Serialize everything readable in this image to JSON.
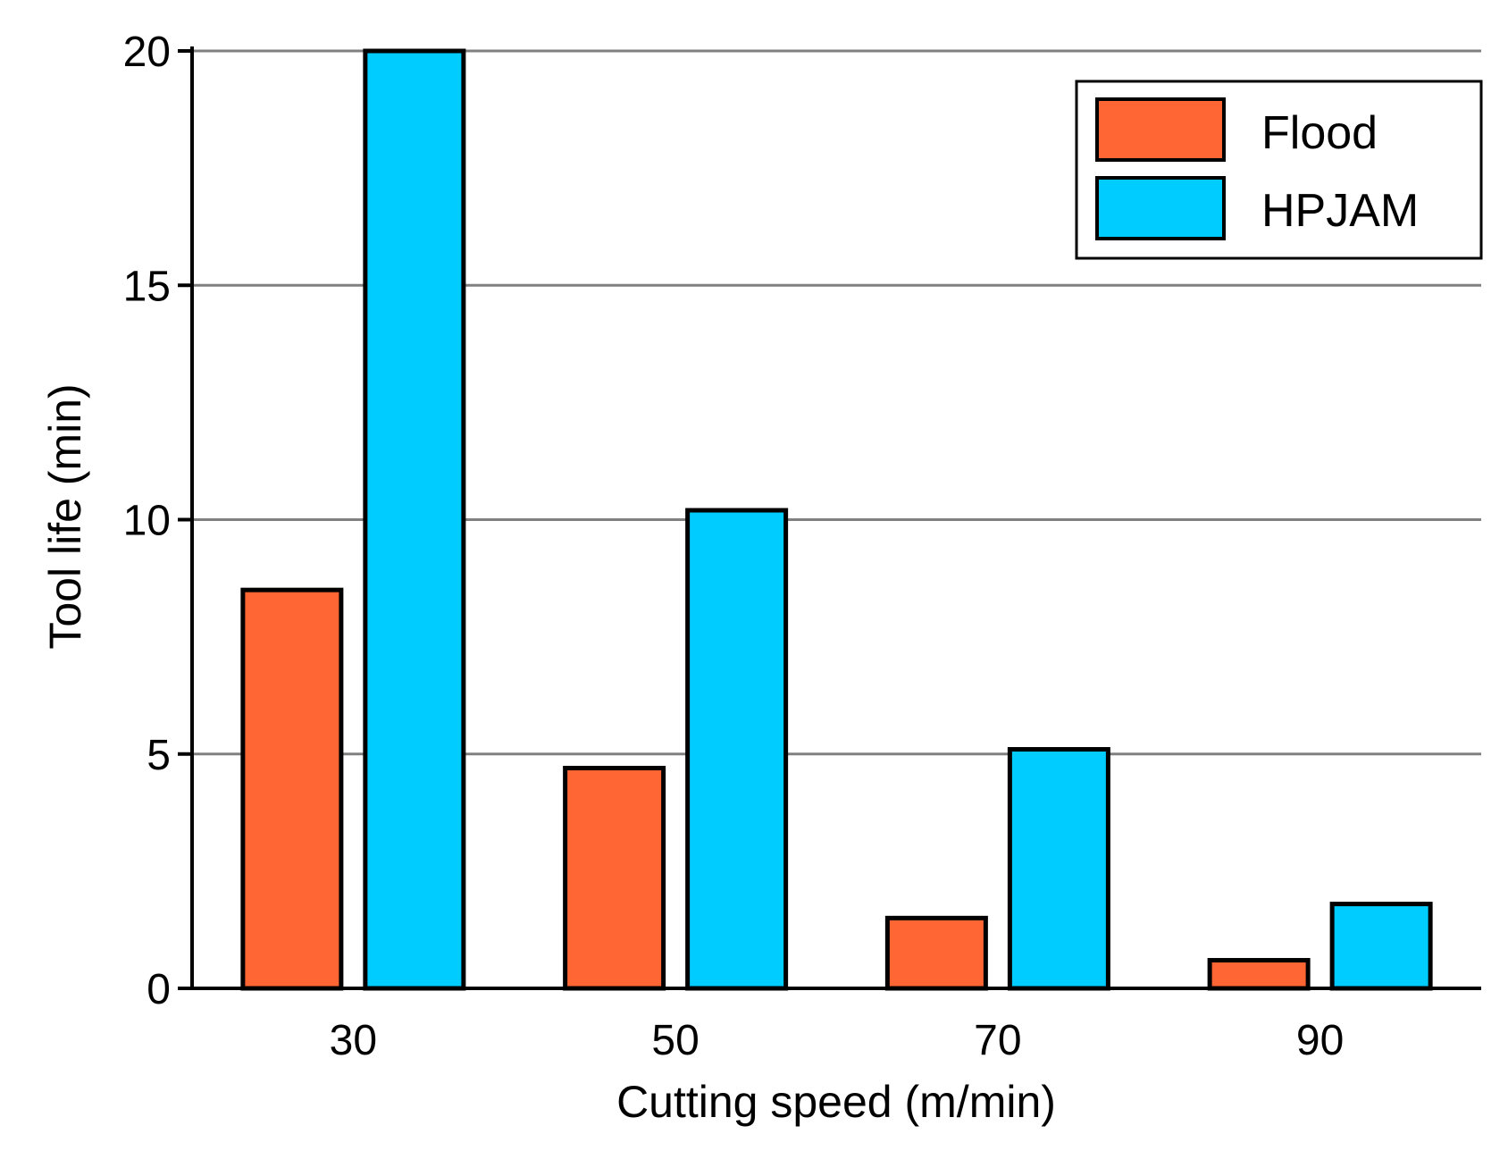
{
  "chart_data": {
    "type": "bar",
    "title": "",
    "xlabel": "Cutting speed (m/min)",
    "ylabel": "Tool life (min)",
    "categories": [
      "30",
      "50",
      "70",
      "90"
    ],
    "series": [
      {
        "name": "Flood",
        "color": "#FF6633",
        "values": [
          8.5,
          4.7,
          1.5,
          0.6
        ]
      },
      {
        "name": "HPJAM",
        "color": "#00CCFF",
        "values": [
          20.0,
          10.2,
          5.1,
          1.8
        ]
      }
    ],
    "ylim": [
      0,
      20
    ],
    "yticks": [
      0,
      5,
      10,
      15,
      20
    ],
    "grid": true,
    "legend_position": "top-right"
  }
}
